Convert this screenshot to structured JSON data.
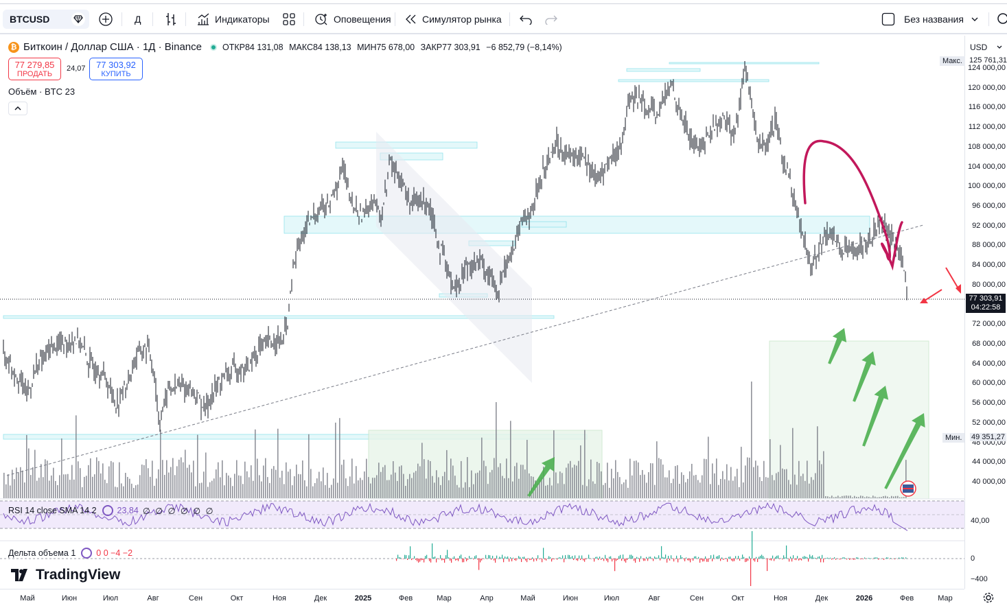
{
  "toolbar": {
    "symbol": "BTCUSD",
    "interval": "Д",
    "indicators_label": "Индикаторы",
    "alerts_label": "Оповещения",
    "replay_label": "Симулятор рынка",
    "layout_name": "Без названия"
  },
  "legend": {
    "title": "Биткоин / Доллар США · 1Д · Binance",
    "open_key": "ОТКР",
    "open": "84 131,08",
    "high_key": "МАКС",
    "high": "84 138,13",
    "low_key": "МИН",
    "low": "75 678,00",
    "close_key": "ЗАКР",
    "close": "77 303,91",
    "change": "−6 852,79 (−8,14%)"
  },
  "trade": {
    "sell_price": "77 279,85",
    "sell_label": "ПРОДАТЬ",
    "spread": "24,07",
    "buy_price": "77 303,92",
    "buy_label": "КУПИТЬ"
  },
  "volume_label": "Объём · BTC  23",
  "rsi": {
    "label": "RSI 14 close SMA 14 2",
    "value": "23,84",
    "extra": "∅ ∅ ∅ ∅ ∅ ∅"
  },
  "delta": {
    "label": "Дельта объема 1",
    "values": "0  0  −4  −2"
  },
  "logo_text": "TradingView",
  "price_axis": {
    "currency": "USD",
    "max_tag": "Макс.",
    "max_value": "125 761,31",
    "min_tag": "Мин.",
    "min_value": "49 351,27",
    "last_price": "77 303,91",
    "countdown": "04:22:58",
    "ticks": [
      "124 000,00",
      "120 000,00",
      "116 000,00",
      "112 000,00",
      "108 000,00",
      "104 000,00",
      "100 000,00",
      "96 000,00",
      "92 000,00",
      "88 000,00",
      "84 000,00",
      "80 000,00",
      "72 000,00",
      "68 000,00",
      "64 000,00",
      "60 000,00",
      "56 000,00",
      "52 000,00",
      "48 000,00",
      "44 000,00",
      "40 000,00"
    ],
    "rsi_tick": "40,00",
    "delta_ticks": [
      "0",
      "−400"
    ]
  },
  "time_axis": [
    "Май",
    "Июн",
    "Июл",
    "Авг",
    "Сен",
    "Окт",
    "Ноя",
    "Дек",
    "2025",
    "Фев",
    "Мар",
    "Апр",
    "Май",
    "Июн",
    "Июл",
    "Авг",
    "Сен",
    "Окт",
    "Ноя",
    "Дек",
    "2026",
    "Фев",
    "Мар"
  ],
  "colors": {
    "up": "#131722",
    "accent": "#2962ff",
    "sell": "#f23645",
    "rsi": "#7e57c2",
    "zone": "#b2ebf2",
    "green": "#4caf50",
    "magenta": "#c2185b"
  }
}
